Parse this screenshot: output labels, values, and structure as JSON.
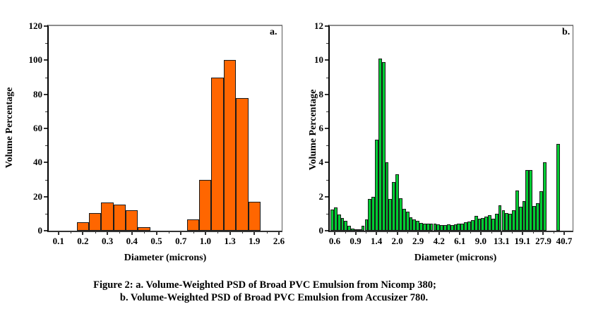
{
  "figure": {
    "background": "#ffffff",
    "caption": {
      "line1": "Figure 2: a. Volume-Weighted PSD of Broad PVC Emulsion from Nicomp 380;",
      "line2": "b. Volume-Weighted PSD of Broad PVC Emulsion from Accusizer 780."
    }
  },
  "chart_data": [
    {
      "type": "bar",
      "panel_label": "a.",
      "title": "",
      "xlabel": "Diameter (microns)",
      "ylabel": "Volume Percentage",
      "x_tick_labels": [
        "0.1",
        "0.2",
        "0.3",
        "0.4",
        "0.5",
        "0.7",
        "1.0",
        "1.3",
        "1.9",
        "2.6"
      ],
      "y_ticks": [
        0,
        20,
        40,
        60,
        80,
        100,
        120
      ],
      "ylim": [
        0,
        120
      ],
      "grid": false,
      "legend": "none",
      "bar_color": "#FF6600",
      "bar_outline": "#1a1a1a",
      "x_approx_microns": [
        0.2,
        0.25,
        0.3,
        0.35,
        0.4,
        0.45,
        0.85,
        1.0,
        1.15,
        1.3,
        1.55,
        1.9
      ],
      "slots": [
        0,
        1,
        2,
        3,
        4,
        5,
        9,
        10,
        11,
        12,
        13,
        14
      ],
      "values": [
        5,
        10.5,
        16.5,
        15.5,
        12,
        2,
        6.5,
        30,
        90,
        100,
        78,
        17
      ]
    },
    {
      "type": "bar",
      "panel_label": "b.",
      "title": "",
      "xlabel": "Diameter (microns)",
      "ylabel": "Volume Percentage",
      "x_tick_labels": [
        "0.6",
        "0.9",
        "1.4",
        "2.0",
        "2.9",
        "4.2",
        "6.1",
        "9.0",
        "13.1",
        "19.1",
        "27.9",
        "40.7"
      ],
      "y_ticks": [
        0,
        2,
        4,
        6,
        8,
        10,
        12
      ],
      "ylim": [
        0,
        12
      ],
      "grid": false,
      "legend": "none",
      "bar_color": "#00CC33",
      "bar_outline": "#1a1a1a",
      "x_range_microns": [
        0.6,
        33
      ],
      "values": [
        1.25,
        1.35,
        0.95,
        0.75,
        0.6,
        0.3,
        0.12,
        0.08,
        0.1,
        0.3,
        0.65,
        1.85,
        2.0,
        5.35,
        10.1,
        9.9,
        4.0,
        1.85,
        2.85,
        3.3,
        1.9,
        1.3,
        1.1,
        0.8,
        0.65,
        0.58,
        0.45,
        0.42,
        0.4,
        0.42,
        0.4,
        0.38,
        0.35,
        0.32,
        0.36,
        0.33,
        0.37,
        0.4,
        0.42,
        0.48,
        0.55,
        0.62,
        0.85,
        0.7,
        0.75,
        0.84,
        0.91,
        0.71,
        1.01,
        1.5,
        1.18,
        1.05,
        1.01,
        1.22,
        2.34,
        1.39,
        1.75,
        3.54,
        3.54,
        1.43,
        1.63,
        2.3,
        4.0,
        0,
        0,
        0,
        5.1
      ]
    }
  ]
}
